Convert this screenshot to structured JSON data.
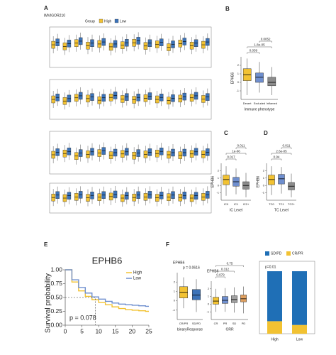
{
  "chart_data": [
    {
      "type": "grouped-box",
      "panel": "A",
      "title": "IMVIGOR210",
      "legend_title": "Group",
      "ylim": [
        0,
        10
      ],
      "series": [
        {
          "name": "High",
          "color": "#f2c232"
        },
        {
          "name": "Low",
          "color": "#3b73b9"
        }
      ],
      "rows": [
        [
          [
            5.6,
            5.2,
            6.0,
            5.4,
            5.8,
            5.1,
            5.5,
            6.1,
            5.3,
            5.7,
            5.0,
            5.9,
            5.4,
            5.6
          ],
          [
            6.2,
            5.9,
            6.5,
            6.0,
            6.3,
            5.8,
            6.1,
            6.6,
            6.0,
            6.2,
            5.7,
            6.4,
            6.0,
            6.3
          ]
        ],
        [
          [
            5.0,
            4.6,
            5.4,
            5.2,
            4.8,
            5.5,
            5.1,
            4.9,
            5.3,
            5.0,
            4.7,
            5.2,
            5.4,
            5.1
          ],
          [
            5.5,
            5.2,
            5.9,
            5.6,
            5.4,
            6.0,
            5.6,
            5.5,
            5.8,
            5.5,
            5.3,
            5.7,
            5.9,
            5.6
          ]
        ],
        [
          [
            4.5,
            4.8,
            4.2,
            4.6,
            4.9,
            4.4,
            4.7,
            4.3,
            4.6,
            4.8,
            4.5,
            4.4,
            4.7,
            4.6
          ],
          [
            5.1,
            5.3,
            4.9,
            5.2,
            5.4,
            5.0,
            5.2,
            4.9,
            5.1,
            5.3,
            5.0,
            5.0,
            5.2,
            5.1
          ]
        ],
        [
          [
            5.2,
            5.0,
            5.4,
            5.1,
            5.3,
            5.5,
            5.0,
            5.2,
            5.4,
            5.1,
            5.3,
            5.2,
            5.0,
            5.4
          ],
          [
            6.0,
            5.8,
            6.1,
            5.9,
            6.0,
            6.2,
            5.8,
            6.0,
            6.1,
            5.9,
            6.0,
            5.9,
            5.8,
            6.1
          ]
        ]
      ]
    },
    {
      "type": "box",
      "panel": "B",
      "y_label": "EPHB6",
      "x_label": "Immune phenotype",
      "ylim": [
        -2,
        3
      ],
      "yticks": [
        -1,
        0,
        1,
        2
      ],
      "categories": [
        "Desert",
        "Excluded",
        "Inflamed"
      ],
      "colors": [
        "#f2c232",
        "#6f8fcf",
        "#8c8c8c"
      ],
      "boxes": [
        {
          "low": -1.5,
          "q1": 0.2,
          "median": 0.9,
          "q3": 1.6,
          "high": 2.8
        },
        {
          "low": -1.2,
          "q1": 0,
          "median": 0.6,
          "q3": 1.1,
          "high": 2.4
        },
        {
          "low": -1.5,
          "q1": -0.4,
          "median": 0,
          "q3": 0.6,
          "high": 1.8
        }
      ],
      "comparisons": [
        "0.039",
        "1.8e-05",
        "0.0052"
      ]
    },
    {
      "type": "box",
      "panel": "C",
      "y_label": "EPHB6",
      "x_label": "IC Level",
      "ylim": [
        -2,
        3
      ],
      "yticks": [
        -1,
        0,
        1,
        2
      ],
      "categories": [
        "IC0",
        "IC1",
        "IC2+"
      ],
      "colors": [
        "#f2c232",
        "#6f8fcf",
        "#8c8c8c"
      ],
      "boxes": [
        {
          "low": -1.4,
          "q1": 0.1,
          "median": 0.8,
          "q3": 1.4,
          "high": 2.6
        },
        {
          "low": -1.2,
          "q1": -0.1,
          "median": 0.5,
          "q3": 1.1,
          "high": 2.3
        },
        {
          "low": -1.6,
          "q1": -0.5,
          "median": 0,
          "q3": 0.5,
          "high": 1.7
        }
      ],
      "comparisons": [
        "0.017",
        "1e-06",
        "0.011"
      ]
    },
    {
      "type": "box",
      "panel": "D",
      "y_label": "EPHB6",
      "x_label": "TC Level",
      "ylim": [
        -2,
        3
      ],
      "yticks": [
        -1,
        0,
        1,
        2
      ],
      "categories": [
        "TC0",
        "TC1",
        "TC2+"
      ],
      "colors": [
        "#f2c232",
        "#6f8fcf",
        "#8c8c8c"
      ],
      "boxes": [
        {
          "low": -1.3,
          "q1": 0.1,
          "median": 0.8,
          "q3": 1.4,
          "high": 2.6
        },
        {
          "low": -1.1,
          "q1": 0.2,
          "median": 0.9,
          "q3": 1.5,
          "high": 2.5
        },
        {
          "low": -1.6,
          "q1": -0.6,
          "median": -0.1,
          "q3": 0.4,
          "high": 1.6
        }
      ],
      "comparisons": [
        "0.94",
        "2.6e-05",
        "0.011"
      ]
    },
    {
      "type": "line",
      "panel": "E",
      "title": "EPHB6",
      "y_label": "Survival probability",
      "annotation": "p = 0.078",
      "x": [
        0,
        2,
        4,
        6,
        8,
        10,
        12,
        14,
        16,
        18,
        20,
        22,
        24
      ],
      "xlim": [
        0,
        25
      ],
      "xticks": [
        0,
        5,
        10,
        15,
        20,
        25
      ],
      "ylim": [
        0,
        1
      ],
      "yticks": [
        {
          "value": 0,
          "label": "0.00"
        },
        {
          "value": 0.25,
          "label": "0.25"
        },
        {
          "value": 0.5,
          "label": "0.50"
        },
        {
          "value": 0.75,
          "label": "0.75"
        },
        {
          "value": 1,
          "label": "1.00"
        }
      ],
      "series": [
        {
          "name": "High",
          "color": "#f2c232",
          "values": [
            1,
            0.78,
            0.62,
            0.52,
            0.46,
            0.41,
            0.37,
            0.33,
            0.3,
            0.28,
            0.27,
            0.26,
            0.25
          ]
        },
        {
          "name": "Low",
          "color": "#6f8fcf",
          "values": [
            1,
            0.82,
            0.68,
            0.58,
            0.51,
            0.47,
            0.43,
            0.4,
            0.38,
            0.37,
            0.36,
            0.35,
            0.34
          ]
        }
      ]
    },
    {
      "type": "box",
      "panel": "F",
      "title": "EPHB6",
      "annotation": "p = 0.0616",
      "x_label": "binaryResponse",
      "ylim": [
        -2,
        3
      ],
      "yticks": [
        -1,
        0,
        1,
        2
      ],
      "categories": [
        "CR/PR",
        "SD/PD"
      ],
      "colors": [
        "#f2c232",
        "#3b73b9"
      ],
      "boxes": [
        {
          "low": -0.8,
          "q1": 0.3,
          "median": 0.9,
          "q3": 1.5,
          "high": 2.5
        },
        {
          "low": -1.2,
          "q1": 0.1,
          "median": 0.6,
          "q3": 1.2,
          "high": 2.3
        }
      ],
      "comparisons": []
    },
    {
      "type": "box",
      "title": "EPHB6",
      "x_label": "ORR",
      "ylim": [
        -2,
        3
      ],
      "yticks": [
        -1,
        0,
        1,
        2
      ],
      "categories": [
        "CR",
        "PR",
        "SD",
        "PD"
      ],
      "colors": [
        "#f2c232",
        "#6f8fcf",
        "#a0a0a0",
        "#e0a060"
      ],
      "boxes": [
        {
          "low": -1,
          "q1": 0,
          "median": 0.4,
          "q3": 0.9,
          "high": 2
        },
        {
          "low": -1,
          "q1": 0.1,
          "median": 0.5,
          "q3": 1,
          "high": 2.1
        },
        {
          "low": -1.1,
          "q1": 0.2,
          "median": 0.6,
          "q3": 1.1,
          "high": 2.2
        },
        {
          "low": -1.2,
          "q1": 0.3,
          "median": 0.7,
          "q3": 1.2,
          "high": 2.3
        }
      ],
      "comparisons": [
        "0.079",
        "0.312",
        "0.75"
      ]
    },
    {
      "type": "bar-stacked",
      "annotation": "p=0.01",
      "categories": [
        "High",
        "Low"
      ],
      "ylim": [
        0,
        100
      ],
      "series": [
        {
          "name": "SD/PD",
          "color": "#1f6fb6",
          "values": [
            80,
            86
          ]
        },
        {
          "name": "CR/PR",
          "color": "#f2c232",
          "values": [
            20,
            14
          ]
        }
      ]
    }
  ]
}
